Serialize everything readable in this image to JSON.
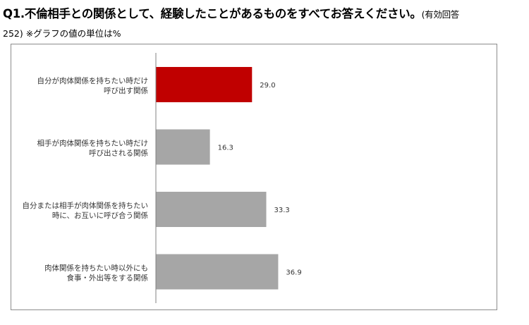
{
  "title": {
    "main": "Q1.不倫相手との関係として、経験したことがあるものをすべてお答えください。",
    "note_start": "(有効回答",
    "note_end": "252) ※グラフの値の単位は%"
  },
  "chart_data": {
    "type": "bar",
    "orientation": "horizontal",
    "categories": [
      [
        "自分が肉体関係を持ちたい時だけ",
        "呼び出す関係"
      ],
      [
        "相手が肉体関係を持ちたい時だけ",
        "呼び出される関係"
      ],
      [
        "自分または相手が肉体関係を持ちたい",
        "時に、お互いに呼び合う関係"
      ],
      [
        "肉体関係を持ちたい時以外にも",
        "食事・外出等をする関係"
      ]
    ],
    "values": [
      29.0,
      16.3,
      33.3,
      36.9
    ],
    "value_labels": [
      "29.0",
      "16.3",
      "33.3",
      "36.9"
    ],
    "colors": [
      "#c00000",
      "#a6a6a6",
      "#a6a6a6",
      "#a6a6a6"
    ],
    "xlim": [
      0,
      100
    ],
    "grid": false,
    "legend": "none",
    "unit": "%"
  }
}
